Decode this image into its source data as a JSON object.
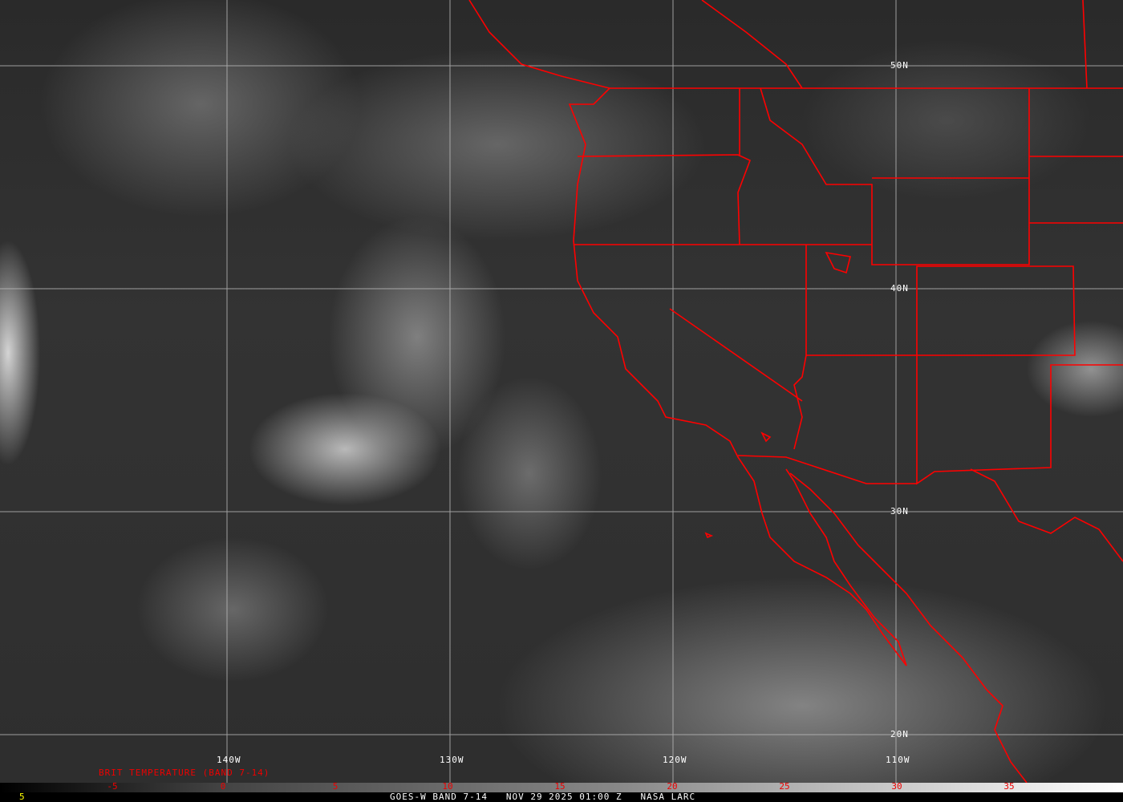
{
  "map": {
    "latitude_labels": [
      "50N",
      "40N",
      "30N",
      "20N"
    ],
    "longitude_labels": [
      "140W",
      "130W",
      "120W",
      "110W"
    ],
    "border_color": "#ff0000",
    "grid_color": "#bbbbbb"
  },
  "colorbar": {
    "title": "BRIT TEMPERATURE (BAND 7-14)",
    "ticks": [
      "-5",
      "0",
      "5",
      "10",
      "15",
      "20",
      "25",
      "30",
      "35"
    ],
    "tick_color": "#ff0000"
  },
  "footer": {
    "frame_number": "5",
    "frame_color": "#ffff00",
    "caption": "GOES-W BAND 7-14   NOV 29 2025 01:00 Z   NASA LARC"
  }
}
